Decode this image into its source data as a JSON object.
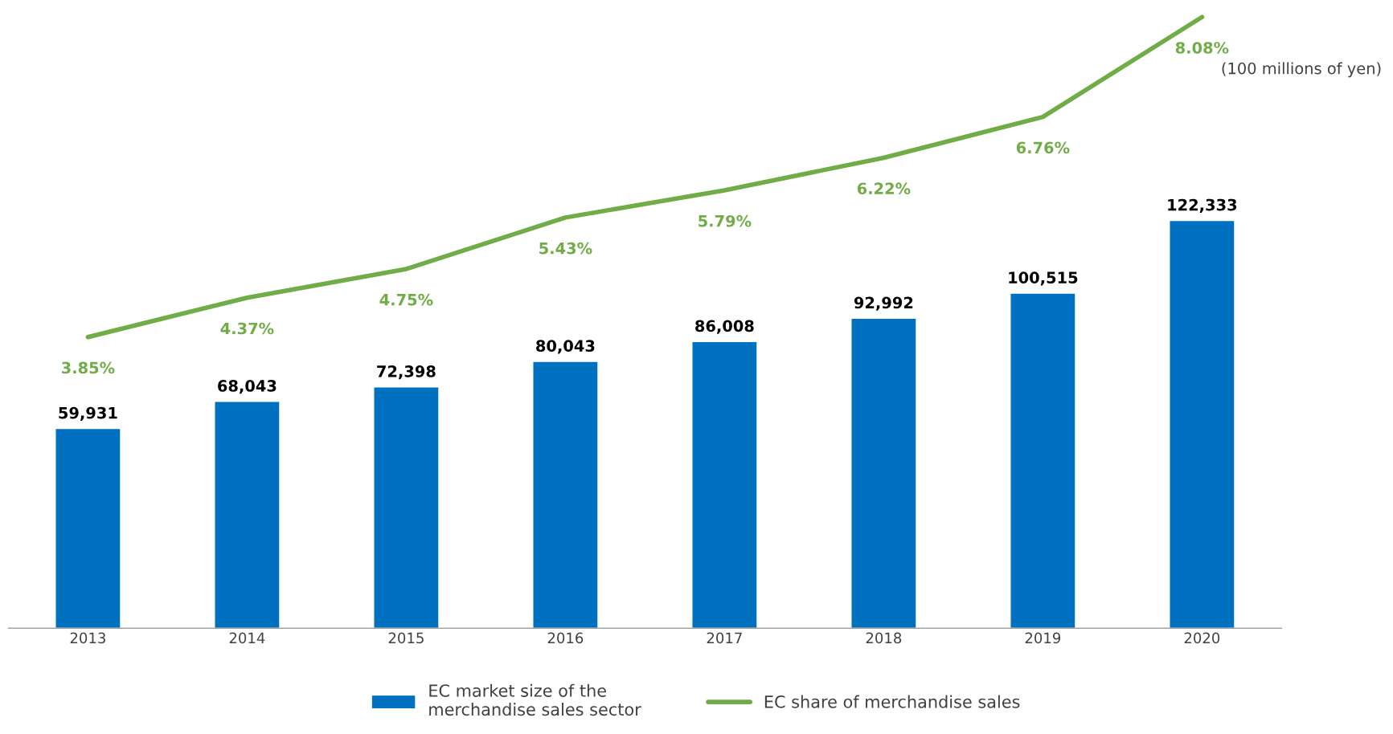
{
  "chart_data": {
    "type": "bar",
    "categories": [
      "2013",
      "2014",
      "2015",
      "2016",
      "2017",
      "2018",
      "2019",
      "2020"
    ],
    "series": [
      {
        "name": "EC market size of the\nmerchandise sales sector",
        "color": "#0070c0",
        "values": [
          59931,
          68043,
          72398,
          80043,
          86008,
          92992,
          100515,
          122333
        ],
        "value_labels": [
          "59,931",
          "68,043",
          "72,398",
          "80,043",
          "86,008",
          "92,992",
          "100,515",
          "122,333"
        ]
      },
      {
        "name": "EC share of merchandise sales",
        "type": "line",
        "axis": "y2",
        "color": "#70ad47",
        "values": [
          3.85,
          4.37,
          4.75,
          5.43,
          5.79,
          6.22,
          6.76,
          8.08
        ],
        "value_labels": [
          "3.85%",
          "4.37%",
          "4.75%",
          "5.43%",
          "5.79%",
          "6.22%",
          "6.76%",
          "8.08%"
        ]
      }
    ],
    "tick_labels": "x",
    "data_labels": true,
    "legend": "bottom",
    "grid": false,
    "marker": "none",
    "annotations": [
      "(100 millions of yen)"
    ]
  }
}
